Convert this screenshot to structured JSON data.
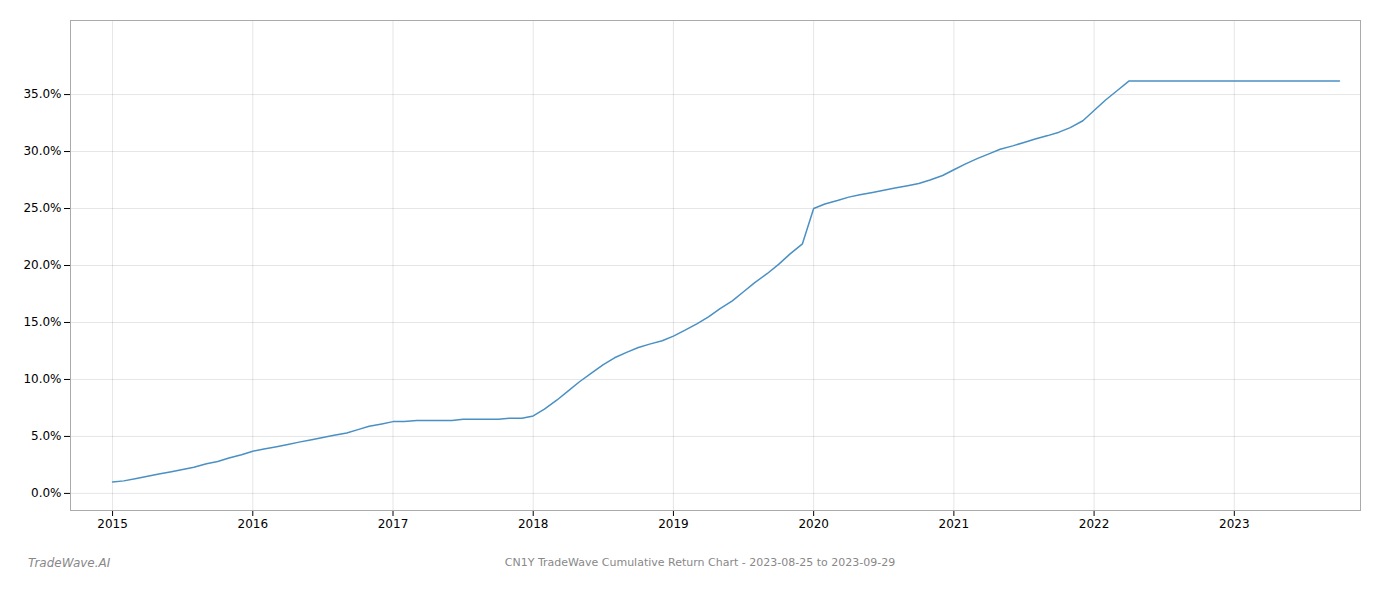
{
  "chart_data": {
    "type": "line",
    "title": "CN1Y TradeWave Cumulative Return Chart - 2023-08-25 to 2023-09-29",
    "annotations": [
      "TradeWave.AI"
    ],
    "color": "#4a90c4",
    "grid": true,
    "x": [
      2015.0,
      2015.08,
      2015.17,
      2015.25,
      2015.33,
      2015.42,
      2015.5,
      2015.58,
      2015.67,
      2015.75,
      2015.83,
      2015.92,
      2016.0,
      2016.08,
      2016.17,
      2016.25,
      2016.33,
      2016.42,
      2016.5,
      2016.58,
      2016.67,
      2016.75,
      2016.83,
      2016.92,
      2017.0,
      2017.08,
      2017.17,
      2017.25,
      2017.33,
      2017.42,
      2017.5,
      2017.58,
      2017.67,
      2017.75,
      2017.83,
      2017.92,
      2018.0,
      2018.08,
      2018.17,
      2018.25,
      2018.33,
      2018.42,
      2018.5,
      2018.58,
      2018.67,
      2018.75,
      2018.83,
      2018.92,
      2019.0,
      2019.08,
      2019.17,
      2019.25,
      2019.33,
      2019.42,
      2019.5,
      2019.58,
      2019.67,
      2019.75,
      2019.83,
      2019.92,
      2020.0,
      2020.08,
      2020.17,
      2020.25,
      2020.33,
      2020.42,
      2020.5,
      2020.58,
      2020.67,
      2020.75,
      2020.83,
      2020.92,
      2021.0,
      2021.08,
      2021.17,
      2021.25,
      2021.33,
      2021.42,
      2021.5,
      2021.58,
      2021.67,
      2021.75,
      2021.83,
      2021.92,
      2022.0,
      2022.08,
      2022.17,
      2022.25,
      2022.5,
      2022.75,
      2023.0,
      2023.25,
      2023.5,
      2023.75
    ],
    "values": [
      0.01,
      0.011,
      0.013,
      0.015,
      0.017,
      0.019,
      0.021,
      0.023,
      0.026,
      0.028,
      0.031,
      0.034,
      0.037,
      0.039,
      0.041,
      0.043,
      0.045,
      0.047,
      0.049,
      0.051,
      0.053,
      0.056,
      0.059,
      0.061,
      0.063,
      0.063,
      0.064,
      0.064,
      0.064,
      0.064,
      0.065,
      0.065,
      0.065,
      0.065,
      0.066,
      0.066,
      0.068,
      0.074,
      0.082,
      0.09,
      0.098,
      0.106,
      0.113,
      0.119,
      0.124,
      0.128,
      0.131,
      0.134,
      0.138,
      0.143,
      0.149,
      0.155,
      0.162,
      0.169,
      0.177,
      0.185,
      0.193,
      0.201,
      0.21,
      0.219,
      0.25,
      0.254,
      0.257,
      0.26,
      0.262,
      0.264,
      0.266,
      0.268,
      0.27,
      0.272,
      0.275,
      0.279,
      0.284,
      0.289,
      0.294,
      0.298,
      0.302,
      0.305,
      0.308,
      0.311,
      0.314,
      0.317,
      0.321,
      0.327,
      0.336,
      0.345,
      0.354,
      0.362,
      0.362,
      0.362,
      0.362,
      0.362,
      0.362,
      0.362
    ],
    "xlim": [
      2014.7,
      2023.9
    ],
    "ylim": [
      -0.015,
      0.415
    ],
    "xticks": [
      2015,
      2016,
      2017,
      2018,
      2019,
      2020,
      2021,
      2022,
      2023
    ],
    "yticks": [
      {
        "value": 0.0,
        "label": "0.0%"
      },
      {
        "value": 0.05,
        "label": "5.0%"
      },
      {
        "value": 0.1,
        "label": "10.0%"
      },
      {
        "value": 0.15,
        "label": "15.0%"
      },
      {
        "value": 0.2,
        "label": "20.0%"
      },
      {
        "value": 0.25,
        "label": "25.0%"
      },
      {
        "value": 0.3,
        "label": "30.0%"
      },
      {
        "value": 0.35,
        "label": "35.0%"
      }
    ]
  }
}
